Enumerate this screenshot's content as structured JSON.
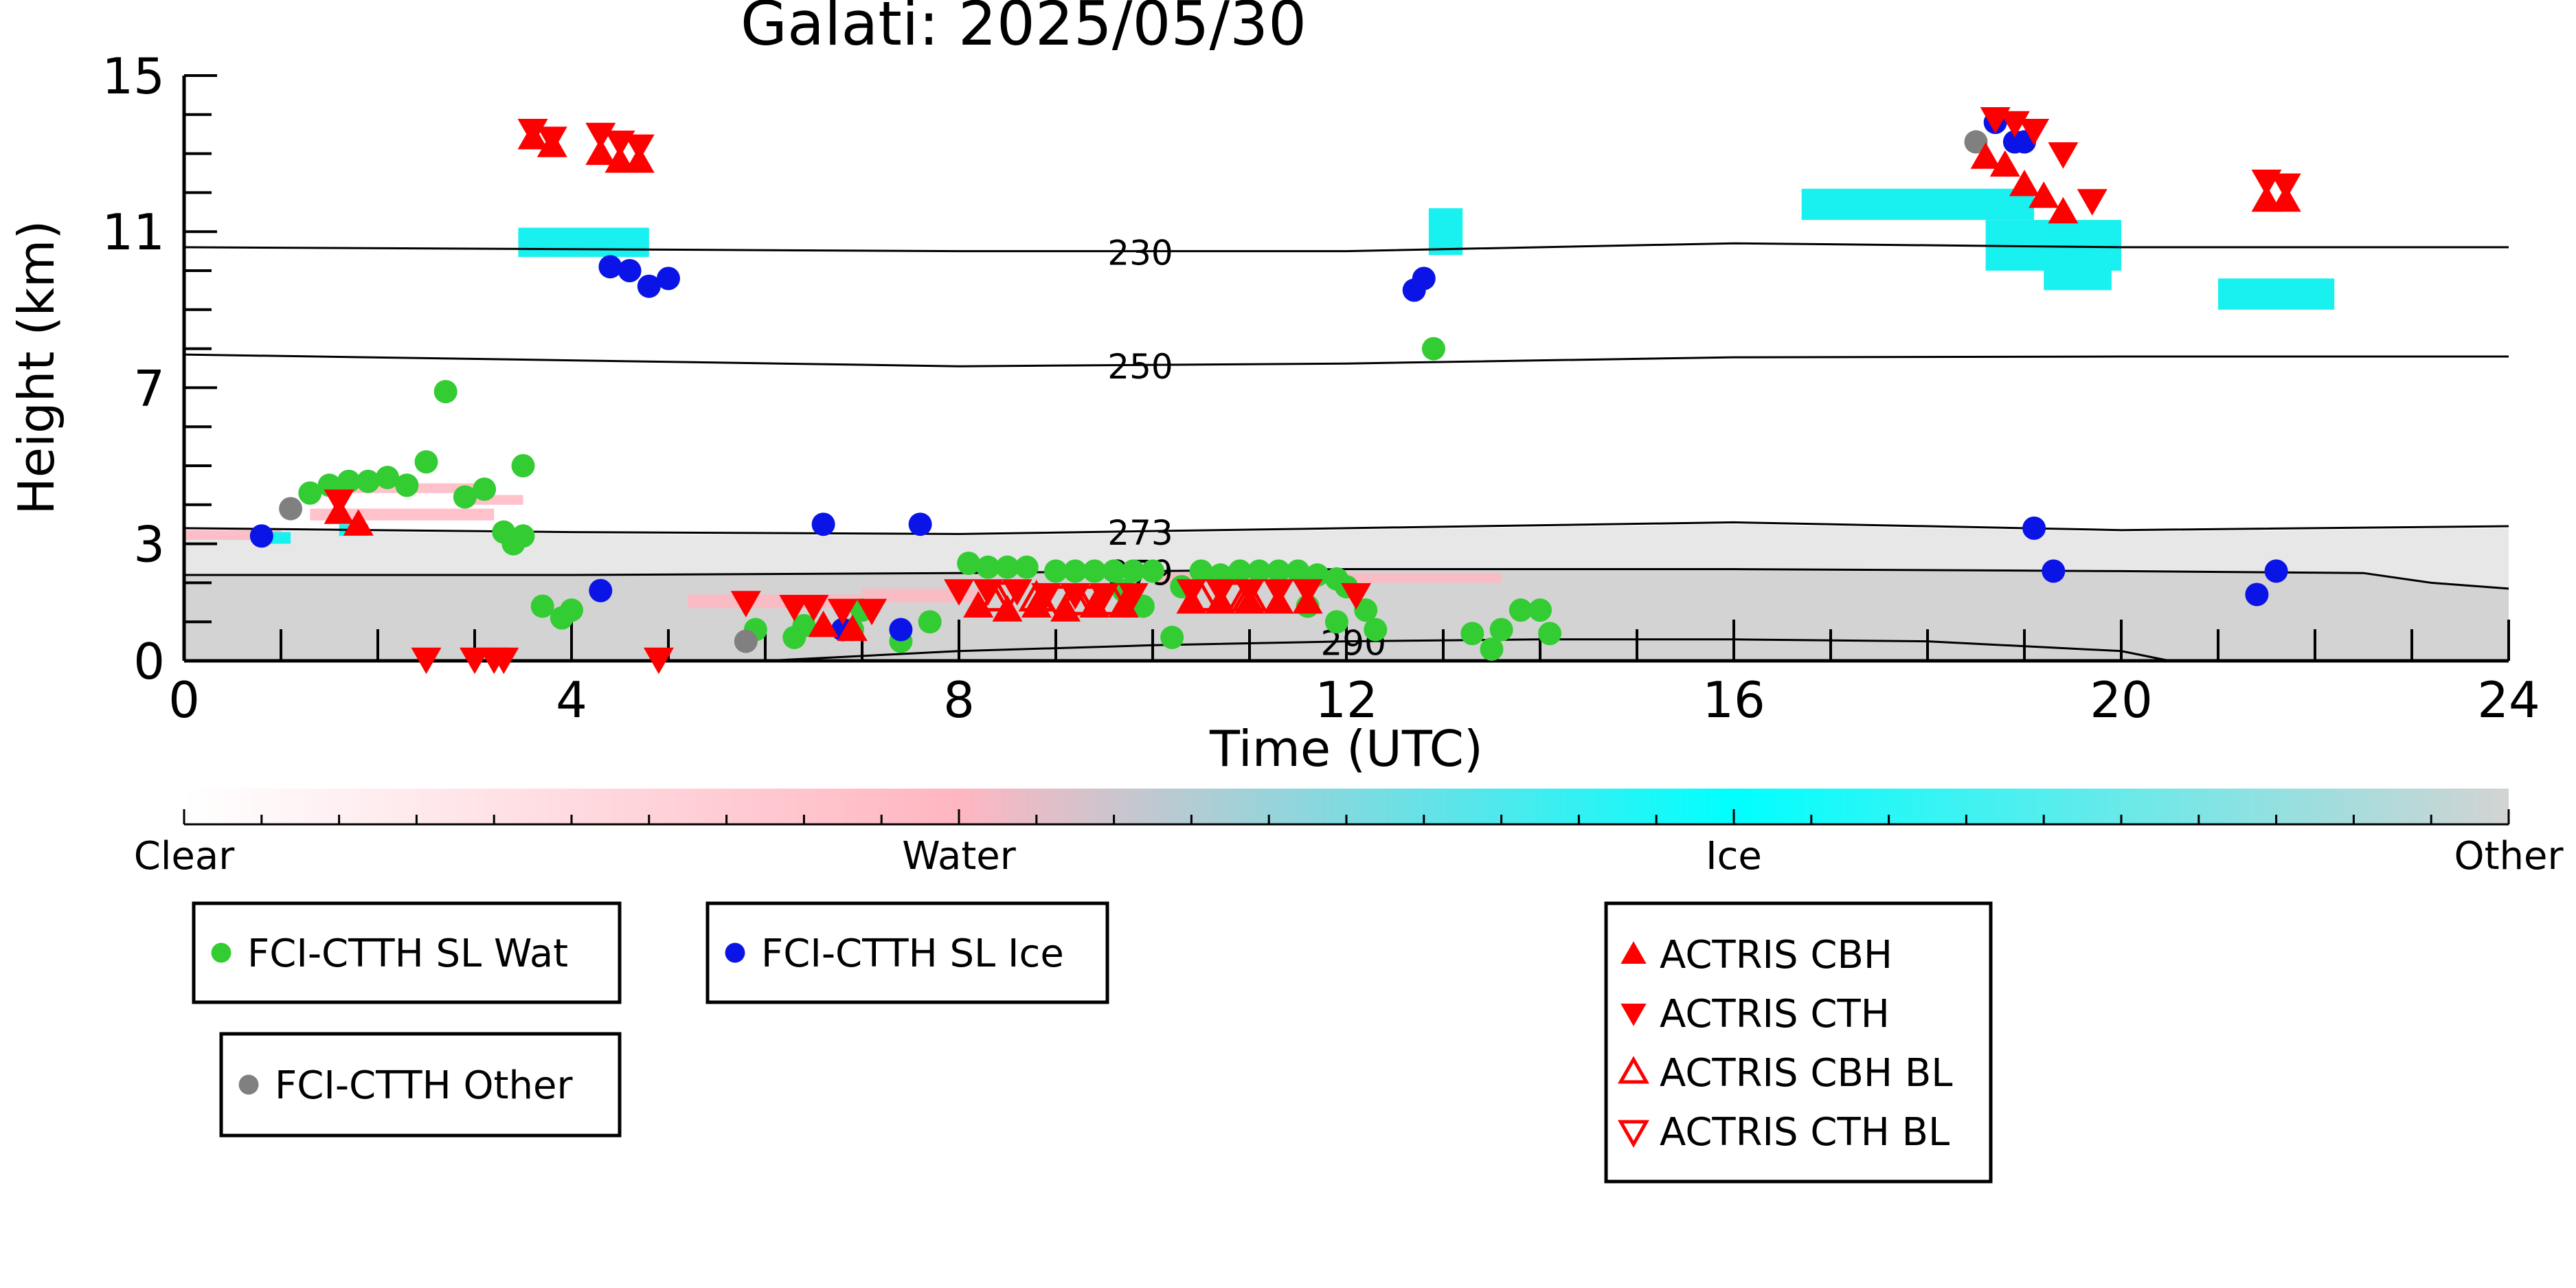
{
  "chart_data": {
    "type": "scatter",
    "title": "Galati: 2025/05/30",
    "xlabel": "Time (UTC)",
    "ylabel": "Height (km)",
    "xlim": [
      0,
      24
    ],
    "ylim": [
      0,
      15
    ],
    "xticks": [
      0,
      4,
      8,
      12,
      16,
      20,
      24
    ],
    "yticks": [
      0,
      3,
      7,
      11,
      15
    ],
    "isotherms": [
      {
        "label": "230",
        "points": [
          [
            0,
            10.6
          ],
          [
            8,
            10.5
          ],
          [
            12,
            10.5
          ],
          [
            16,
            10.7
          ],
          [
            20,
            10.6
          ],
          [
            24,
            10.6
          ]
        ]
      },
      {
        "label": "250",
        "points": [
          [
            0,
            7.85
          ],
          [
            4,
            7.7
          ],
          [
            8,
            7.55
          ],
          [
            12,
            7.62
          ],
          [
            16,
            7.78
          ],
          [
            20,
            7.8
          ],
          [
            24,
            7.8
          ]
        ]
      },
      {
        "label": "273",
        "points": [
          [
            0,
            3.4
          ],
          [
            4,
            3.3
          ],
          [
            8,
            3.25
          ],
          [
            12,
            3.4
          ],
          [
            16,
            3.55
          ],
          [
            20,
            3.35
          ],
          [
            24,
            3.45
          ]
        ]
      },
      {
        "label": "279",
        "points": [
          [
            0,
            2.2
          ],
          [
            4,
            2.2
          ],
          [
            8,
            2.25
          ],
          [
            12,
            2.35
          ],
          [
            16,
            2.35
          ],
          [
            20,
            2.3
          ],
          [
            22.5,
            2.25
          ],
          [
            23.2,
            2.0
          ],
          [
            24,
            1.85
          ]
        ]
      },
      {
        "label": "290",
        "points": [
          [
            0,
            0
          ],
          [
            6,
            0
          ],
          [
            8,
            0.25
          ],
          [
            10,
            0.4
          ],
          [
            12,
            0.5
          ],
          [
            14,
            0.55
          ],
          [
            16,
            0.55
          ],
          [
            18,
            0.5
          ],
          [
            20,
            0.25
          ],
          [
            20.5,
            0
          ]
        ]
      }
    ],
    "series": [
      {
        "name": "FCI-CTTH SL Wat",
        "color": "#33cc33",
        "marker": "circle",
        "points": [
          [
            1.3,
            4.3
          ],
          [
            1.5,
            4.5
          ],
          [
            1.7,
            4.6
          ],
          [
            1.9,
            4.6
          ],
          [
            2.1,
            4.7
          ],
          [
            2.3,
            4.5
          ],
          [
            2.3,
            4.5
          ],
          [
            2.5,
            5.1
          ],
          [
            2.7,
            6.9
          ],
          [
            2.9,
            4.2
          ],
          [
            3.1,
            4.4
          ],
          [
            3.3,
            3.3
          ],
          [
            3.4,
            3.0
          ],
          [
            3.5,
            5.0
          ],
          [
            3.5,
            3.2
          ],
          [
            3.7,
            1.4
          ],
          [
            3.9,
            1.1
          ],
          [
            4.0,
            1.3
          ],
          [
            5.9,
            0.8
          ],
          [
            6.3,
            0.6
          ],
          [
            6.4,
            0.9
          ],
          [
            6.9,
            0.8
          ],
          [
            7.0,
            1.3
          ],
          [
            7.4,
            0.5
          ],
          [
            7.7,
            1.0
          ],
          [
            8.1,
            2.5
          ],
          [
            8.3,
            2.4
          ],
          [
            8.5,
            2.4
          ],
          [
            8.7,
            2.4
          ],
          [
            9.0,
            2.3
          ],
          [
            9.2,
            2.3
          ],
          [
            9.4,
            2.3
          ],
          [
            9.6,
            2.3
          ],
          [
            9.8,
            2.3
          ],
          [
            10.0,
            2.3
          ],
          [
            9.7,
            1.8
          ],
          [
            9.9,
            1.4
          ],
          [
            10.2,
            0.6
          ],
          [
            10.3,
            1.9
          ],
          [
            10.5,
            2.3
          ],
          [
            10.7,
            2.2
          ],
          [
            10.9,
            2.3
          ],
          [
            11.1,
            2.3
          ],
          [
            11.3,
            2.3
          ],
          [
            11.5,
            2.3
          ],
          [
            11.7,
            2.2
          ],
          [
            11.9,
            2.1
          ],
          [
            12.0,
            1.9
          ],
          [
            11.6,
            1.4
          ],
          [
            12.2,
            1.3
          ],
          [
            11.9,
            1.0
          ],
          [
            12.3,
            0.8
          ],
          [
            13.3,
            0.7
          ],
          [
            13.5,
            0.3
          ],
          [
            13.6,
            0.8
          ],
          [
            13.8,
            1.3
          ],
          [
            14.0,
            1.3
          ],
          [
            14.1,
            0.7
          ],
          [
            12.9,
            8.0
          ]
        ]
      },
      {
        "name": "FCI-CTTH SL Ice",
        "color": "#0a14e6",
        "marker": "circle",
        "points": [
          [
            0.8,
            3.2
          ],
          [
            4.4,
            10.1
          ],
          [
            4.6,
            10.0
          ],
          [
            4.8,
            9.6
          ],
          [
            5.0,
            9.8
          ],
          [
            4.3,
            1.8
          ],
          [
            6.6,
            3.5
          ],
          [
            7.6,
            3.5
          ],
          [
            6.8,
            0.8
          ],
          [
            7.4,
            0.8
          ],
          [
            12.7,
            9.5
          ],
          [
            12.8,
            9.8
          ],
          [
            18.7,
            13.8
          ],
          [
            18.9,
            13.3
          ],
          [
            19.0,
            13.3
          ],
          [
            19.1,
            3.4
          ],
          [
            19.3,
            2.3
          ],
          [
            21.4,
            1.7
          ],
          [
            21.6,
            2.3
          ]
        ]
      },
      {
        "name": "FCI-CTTH Other",
        "color": "#808080",
        "marker": "circle",
        "points": [
          [
            1.1,
            3.9
          ],
          [
            5.8,
            0.5
          ],
          [
            18.5,
            13.3
          ]
        ]
      },
      {
        "name": "ACTRIS CBH",
        "color": "#ff0000",
        "marker": "triangle-up",
        "filled": true,
        "points": [
          [
            1.6,
            3.8
          ],
          [
            1.8,
            3.5
          ],
          [
            3.6,
            13.4
          ],
          [
            3.8,
            13.2
          ],
          [
            4.3,
            13.0
          ],
          [
            4.5,
            12.8
          ],
          [
            4.7,
            12.8
          ],
          [
            8.2,
            1.4
          ],
          [
            8.5,
            1.3
          ],
          [
            8.8,
            1.4
          ],
          [
            9.1,
            1.3
          ],
          [
            9.4,
            1.4
          ],
          [
            9.7,
            1.4
          ],
          [
            10.4,
            1.5
          ],
          [
            10.7,
            1.5
          ],
          [
            11.0,
            1.5
          ],
          [
            11.3,
            1.5
          ],
          [
            11.6,
            1.5
          ],
          [
            6.6,
            0.9
          ],
          [
            6.9,
            0.8
          ],
          [
            18.6,
            12.9
          ],
          [
            18.8,
            12.7
          ],
          [
            19.0,
            12.2
          ],
          [
            19.2,
            11.9
          ],
          [
            19.4,
            11.5
          ],
          [
            21.5,
            11.8
          ],
          [
            21.7,
            11.8
          ]
        ]
      },
      {
        "name": "ACTRIS CTH",
        "color": "#ff0000",
        "marker": "triangle-down",
        "filled": true,
        "points": [
          [
            1.6,
            4.1
          ],
          [
            3.6,
            13.6
          ],
          [
            3.8,
            13.4
          ],
          [
            4.3,
            13.5
          ],
          [
            4.5,
            13.3
          ],
          [
            4.7,
            13.2
          ],
          [
            5.8,
            1.5
          ],
          [
            6.3,
            1.4
          ],
          [
            6.5,
            1.4
          ],
          [
            6.8,
            1.3
          ],
          [
            7.1,
            1.3
          ],
          [
            8.0,
            1.8
          ],
          [
            8.3,
            1.8
          ],
          [
            8.6,
            1.8
          ],
          [
            8.9,
            1.7
          ],
          [
            9.2,
            1.7
          ],
          [
            9.5,
            1.7
          ],
          [
            9.8,
            1.7
          ],
          [
            10.4,
            1.8
          ],
          [
            10.7,
            1.8
          ],
          [
            11.0,
            1.8
          ],
          [
            11.3,
            1.8
          ],
          [
            11.6,
            1.8
          ],
          [
            12.1,
            1.7
          ],
          [
            2.5,
            0.05
          ],
          [
            3.0,
            0.05
          ],
          [
            3.2,
            0.05
          ],
          [
            3.3,
            0.05
          ],
          [
            4.9,
            0.05
          ],
          [
            18.7,
            13.9
          ],
          [
            18.9,
            13.8
          ],
          [
            19.1,
            13.6
          ],
          [
            19.4,
            13.0
          ],
          [
            19.7,
            11.8
          ],
          [
            21.5,
            12.3
          ],
          [
            21.7,
            12.2
          ]
        ]
      },
      {
        "name": "ACTRIS CBH BL",
        "color": "#ff0000",
        "marker": "triangle-up",
        "filled": false,
        "points": [
          [
            8.4,
            1.6
          ],
          [
            8.8,
            1.6
          ],
          [
            9.2,
            1.5
          ],
          [
            9.6,
            1.5
          ],
          [
            10.5,
            1.6
          ],
          [
            11.0,
            1.6
          ]
        ]
      },
      {
        "name": "ACTRIS CTH BL",
        "color": "#ff0000",
        "marker": "triangle-down",
        "filled": false,
        "points": [
          [
            8.5,
            1.7
          ],
          [
            9.0,
            1.6
          ],
          [
            9.4,
            1.6
          ],
          [
            10.8,
            1.7
          ]
        ]
      }
    ],
    "colorbar": {
      "labels": [
        "Clear",
        "Water",
        "Ice",
        "Other"
      ],
      "colors": [
        "#ffffff",
        "#ffb6c1",
        "#00ffff",
        "#d3d3d3"
      ]
    },
    "background_colors": {
      "other": "#d3d3d3",
      "ice": "#19f0f0",
      "water": "#ffb6c1"
    },
    "legend_groups": [
      [
        "FCI-CTTH SL Wat"
      ],
      [
        "FCI-CTTH SL Ice"
      ],
      [
        "FCI-CTTH Other"
      ],
      [
        "ACTRIS CBH",
        "ACTRIS CTH",
        "ACTRIS CBH BL",
        "ACTRIS CTH BL"
      ]
    ]
  }
}
